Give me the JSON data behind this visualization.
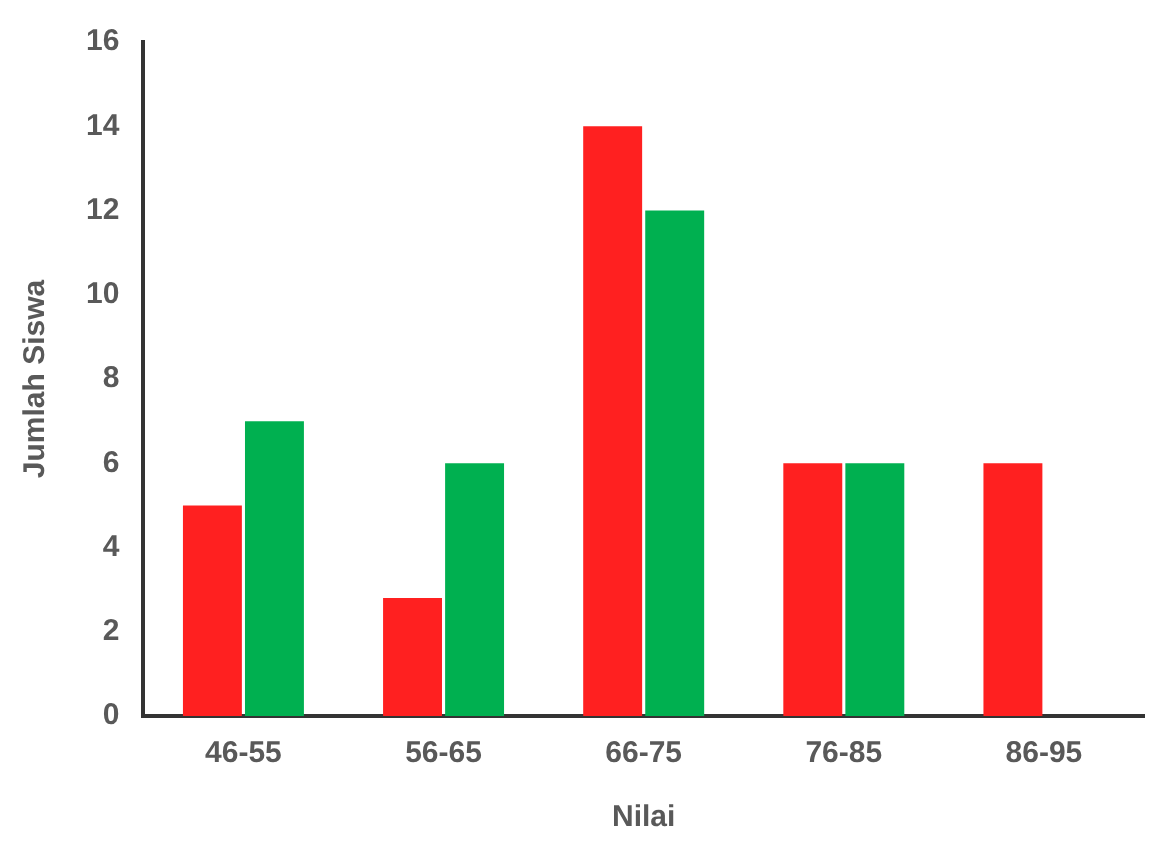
{
  "chart_data": {
    "type": "bar",
    "xlabel": "Nilai",
    "ylabel": "Jumlah Siswa",
    "categories": [
      "46-55",
      "56-65",
      "66-75",
      "76-85",
      "86-95"
    ],
    "series": [
      {
        "color": "#ff2020",
        "values": [
          5,
          2.8,
          14,
          6,
          6
        ]
      },
      {
        "color": "#00b050",
        "values": [
          7,
          6,
          12,
          6,
          null
        ]
      }
    ],
    "ylim": [
      0,
      16
    ],
    "yticks": [
      0,
      2,
      4,
      6,
      8,
      10,
      12,
      14,
      16
    ],
    "grid": false,
    "legend": false
  }
}
